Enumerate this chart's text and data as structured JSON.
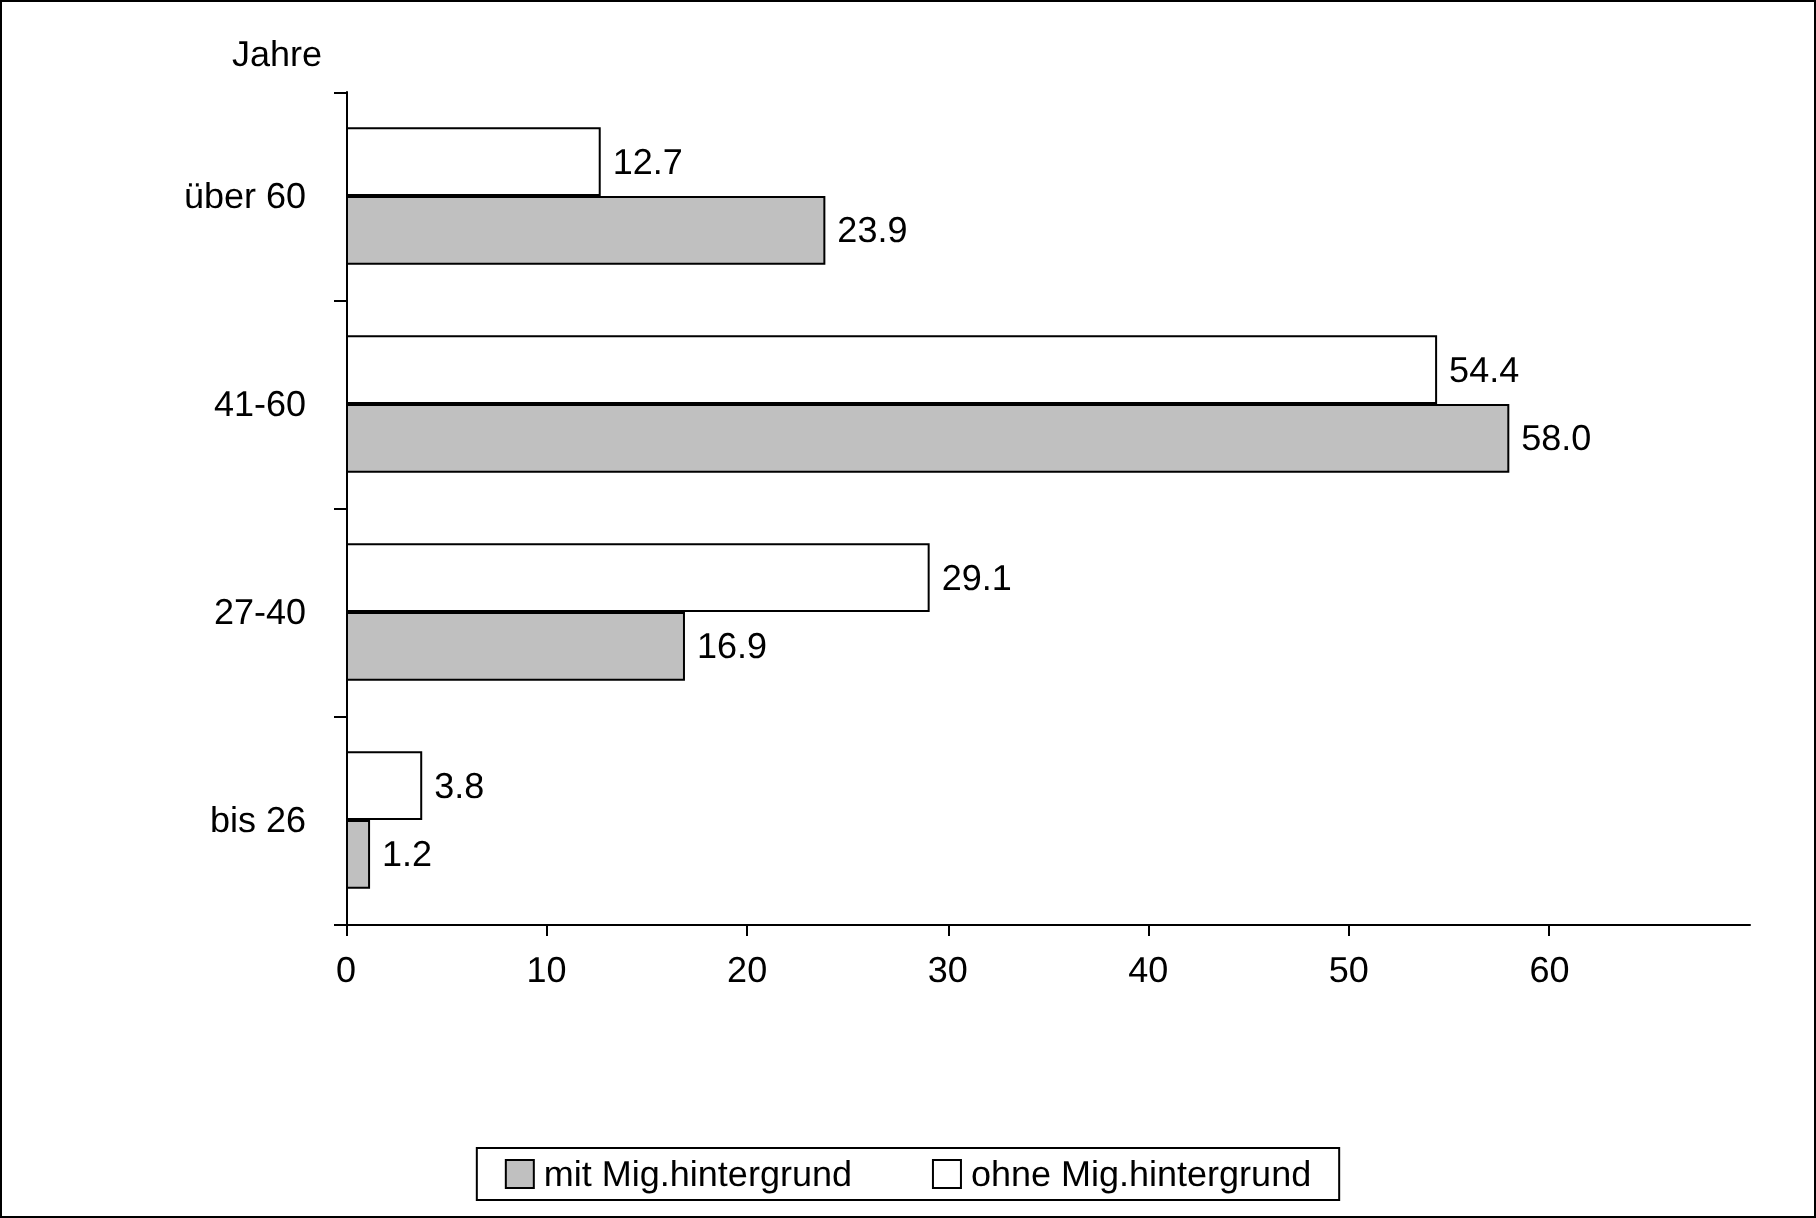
{
  "chart_data": {
    "type": "bar",
    "orientation": "horizontal",
    "ylabel": "Jahre",
    "categories": [
      "über 60",
      "41-60",
      "27-40",
      "bis 26"
    ],
    "series": [
      {
        "name": "mit Mig.hintergrund",
        "color": "#c0c0c0",
        "values": [
          23.9,
          58.0,
          16.9,
          1.2
        ],
        "value_labels": [
          "23.9",
          "58.0",
          "16.9",
          "1.2"
        ]
      },
      {
        "name": "ohne Mig.hintergrund",
        "color": "#ffffff",
        "values": [
          12.7,
          54.4,
          29.1,
          3.8
        ],
        "value_labels": [
          "12.7",
          "54.4",
          "29.1",
          "3.8"
        ]
      }
    ],
    "xlim": [
      0,
      70
    ],
    "xticks": [
      0,
      10,
      20,
      30,
      40,
      50,
      60
    ],
    "grid": false,
    "legend": "bottom"
  }
}
